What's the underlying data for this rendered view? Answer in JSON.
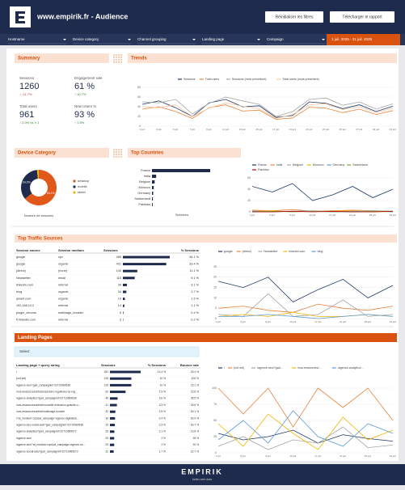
{
  "header": {
    "title": "www.empirik.fr - Audience",
    "buttons": [
      "Réinitialiser les filtres",
      "Télécharger le rapport"
    ]
  },
  "filters": {
    "items": [
      "Hostname",
      "Device category",
      "Channel grouping",
      "Landing page",
      "Campaign"
    ],
    "date": "1 juil. 2025 - 31 juil. 2025"
  },
  "summary": {
    "title": "Summary",
    "metrics": [
      {
        "label": "Sessions",
        "value": "1260",
        "delta": "↓ -11.7%",
        "delta_color": "#d32f2f"
      },
      {
        "label": "Engagement rate",
        "value": "61 %",
        "delta": "↑ 10.7%",
        "delta_color": "#2e7d32"
      },
      {
        "label": "Total users",
        "value": "961",
        "delta": "↓ 2.0% vs Y-1",
        "delta_color": "#2e7d32"
      },
      {
        "label": "New Users %",
        "value": "93 %",
        "delta": "↑ 1.5%",
        "delta_color": "#2e7d32"
      }
    ]
  },
  "trends": {
    "title": "Trends",
    "chart_data": {
      "type": "line",
      "x": [
        "1 juil.",
        "3 juil.",
        "5 juil.",
        "7 juil.",
        "9 juil.",
        "11 juil.",
        "13 juil.",
        "15 juil.",
        "17 juil.",
        "19 juil.",
        "21 juil.",
        "23 juil.",
        "25 juil.",
        "27 juil.",
        "29 juil.",
        "31 juil."
      ],
      "ylim": [
        0,
        80
      ],
      "yticks": [
        0,
        20,
        40,
        60,
        80
      ],
      "grid": true,
      "series": [
        {
          "name": "Sessions",
          "color": "#1f3864",
          "values": [
            45,
            52,
            38,
            20,
            48,
            55,
            40,
            42,
            18,
            22,
            50,
            47,
            36,
            44,
            30,
            41
          ]
        },
        {
          "name": "Total users",
          "color": "#e8833a",
          "values": [
            35,
            40,
            30,
            16,
            38,
            44,
            31,
            33,
            14,
            17,
            39,
            37,
            28,
            35,
            24,
            32
          ]
        },
        {
          "name": "Sessions (mois précédent)",
          "color": "#a6a6a6",
          "values": [
            50,
            48,
            55,
            25,
            47,
            60,
            52,
            45,
            20,
            30,
            55,
            58,
            43,
            50,
            35,
            46
          ]
        },
        {
          "name": "Total users (mois précédent)",
          "color": "#f4c7a1",
          "values": [
            40,
            38,
            44,
            20,
            37,
            48,
            41,
            36,
            16,
            24,
            44,
            46,
            34,
            40,
            28,
            37
          ]
        }
      ]
    }
  },
  "device": {
    "title": "Device Category",
    "chart_data": {
      "type": "pie",
      "x_label": "Nombre de sessions",
      "categories": [
        "desktop",
        "mobile",
        "tablet"
      ],
      "values": [
        64.1,
        34.3,
        1.6
      ],
      "value_labels": [
        "64.1%",
        "34.3%",
        null
      ],
      "colors": [
        "#e0591a",
        "#1f2b4d",
        "#f2b705"
      ]
    }
  },
  "countries": {
    "title": "Top Countries",
    "bars": {
      "type": "bar",
      "categories": [
        "France",
        "India",
        "Belgium",
        "Morocco",
        "Germany",
        "Switzerland",
        "Pakistan"
      ],
      "values": [
        980,
        70,
        45,
        30,
        20,
        15,
        12
      ],
      "color": "#1f2b4d",
      "x_label": "Sessions"
    },
    "chart_data": {
      "type": "line",
      "x": [
        "1 juil.",
        "5 juil.",
        "9 juil.",
        "13 juil.",
        "17 juil.",
        "21 juil.",
        "25 juil.",
        "29 juil."
      ],
      "ylim": [
        0,
        60
      ],
      "yticks": [
        0,
        20,
        40,
        60
      ],
      "grid": true,
      "series": [
        {
          "name": "France",
          "color": "#1f3864",
          "values": [
            45,
            35,
            50,
            20,
            30,
            45,
            25,
            40
          ]
        },
        {
          "name": "India",
          "color": "#e8833a",
          "values": [
            3,
            2,
            4,
            1,
            2,
            3,
            2,
            1
          ]
        },
        {
          "name": "Belgium",
          "color": "#a6a6a6",
          "values": [
            2,
            1,
            1,
            2,
            1,
            0,
            2,
            1
          ]
        },
        {
          "name": "Morocco",
          "color": "#f2b705",
          "values": [
            1,
            2,
            0,
            1,
            1,
            2,
            0,
            1
          ]
        },
        {
          "name": "Germany",
          "color": "#5b9bd5",
          "values": [
            1,
            0,
            1,
            1,
            0,
            1,
            1,
            0
          ]
        },
        {
          "name": "Switzerland",
          "color": "#70ad47",
          "values": [
            0,
            1,
            0,
            1,
            0,
            0,
            1,
            1
          ]
        },
        {
          "name": "Pakistan",
          "color": "#c00000",
          "values": [
            0,
            0,
            1,
            0,
            1,
            0,
            0,
            1
          ]
        }
      ]
    }
  },
  "traffic": {
    "title": "Top Traffic Sources",
    "columns": [
      "Session source",
      "Session medium",
      "Sessions",
      "% Sessions"
    ],
    "bar_color": "#1f2b4d",
    "rows": [
      [
        "google",
        "cpc",
        455,
        "36.1 %"
      ],
      [
        "google",
        "organic",
        421,
        "33.4 %"
      ],
      [
        "(direct)",
        "(none)",
        140,
        "11.1 %"
      ],
      [
        "Newsletter",
        "email",
        115,
        "9.1 %"
      ],
      [
        "linkedin.com",
        "referral",
        39,
        "3.1 %"
      ],
      [
        "bing",
        "organic",
        34,
        "2.7 %"
      ],
      [
        "qwant.com",
        "organic",
        19,
        "1.5 %"
      ],
      [
        "192.168.10.2",
        "referral",
        14,
        "1.1 %"
      ],
      [
        "plugin_chrome",
        "mailinage_booster",
        5,
        "0.4 %"
      ],
      [
        "fr.linkedin.com",
        "referral",
        3,
        "0.2 %"
      ]
    ],
    "chart_data": {
      "type": "line",
      "x": [
        "1 juil.",
        "5 juil.",
        "9 juil.",
        "13 juil.",
        "17 juil.",
        "21 juil.",
        "25 juil.",
        "29 juil."
      ],
      "ylim": [
        0,
        25
      ],
      "yticks": [
        0,
        5,
        10,
        15,
        20,
        25
      ],
      "grid": true,
      "series": [
        {
          "name": "google",
          "color": "#1f3864",
          "values": [
            18,
            15,
            20,
            8,
            14,
            19,
            10,
            16
          ]
        },
        {
          "name": "(direct)",
          "color": "#e8833a",
          "values": [
            5,
            6,
            4,
            3,
            7,
            5,
            4,
            6
          ]
        },
        {
          "name": "Newsletter",
          "color": "#a6a6a6",
          "values": [
            2,
            1,
            12,
            1,
            2,
            9,
            1,
            2
          ]
        },
        {
          "name": "linkedin.com",
          "color": "#f2b705",
          "values": [
            1,
            2,
            1,
            3,
            1,
            1,
            2,
            1
          ]
        },
        {
          "name": "bing",
          "color": "#5b9bd5",
          "values": [
            1,
            1,
            2,
            1,
            0,
            1,
            2,
            1
          ]
        }
      ]
    }
  },
  "landing": {
    "title": "Landing Pages",
    "select": "Select",
    "columns": [
      "Landing page + query string",
      "Sessions",
      "% Sessions",
      "Bounce rate"
    ],
    "bar_color": "#1f2b4d",
    "rows": [
      [
        "/",
        181,
        "14.4 %",
        "25.4 %"
      ],
      [
        "(not set)",
        126,
        "10 %",
        "100 %"
      ],
      [
        "/agence-seo/?gad_campaignid=22710969536",
        126,
        "10 %",
        "15.1 %"
      ],
      [
        "/nos-ressources/article/sessions-regulieres-ou-reg...",
        92,
        "7.3 %",
        "22.8 %"
      ],
      [
        "/agence-analytics/?gad_campaignid=22710969536",
        45,
        "3.6 %",
        "35.5 %"
      ],
      [
        "/nos-ressources/article/nouvelle-extension-gratuite-o...",
        41,
        "3.3 %",
        "26.8 %"
      ],
      [
        "/nos-ressources/article/mailinage-booster",
        32,
        "2.5 %",
        "53.1 %"
      ],
      [
        "/?at_medium=cpc&at_campaign=agence-digital&at...",
        30,
        "2.4 %",
        "30.9 %"
      ],
      [
        "/agence-seo-social-ads/?gad_campaignid=22710969536",
        29,
        "2.3 %",
        "53.7 %"
      ],
      [
        "/agence-analytics/?gad_campaignid=22710969572",
        26,
        "2.1 %",
        "13.8 %"
      ],
      [
        "/agence-seo/",
        25,
        "2 %",
        "28 %"
      ],
      [
        "/agence-seo/?at_medium=cpc&at_campaign=agence-se...",
        25,
        "2 %",
        "20 %"
      ],
      [
        "/agence-social-ads/?gad_campaignid=22710969572",
        22,
        "1.7 %",
        "22.7 %"
      ]
    ],
    "chart_data": {
      "type": "line",
      "x": [
        "1 juil.",
        "5 juil.",
        "9 juil.",
        "13 juil.",
        "17 juil.",
        "21 juil.",
        "25 juil.",
        "29 juil."
      ],
      "ylim": [
        0,
        100
      ],
      "yticks": [
        0,
        25,
        50,
        75,
        100
      ],
      "grid": true,
      "series": [
        {
          "name": "/",
          "color": "#1f3864",
          "values": [
            30,
            20,
            25,
            35,
            15,
            28,
            22,
            18
          ]
        },
        {
          "name": "(not set)",
          "color": "#e8833a",
          "values": [
            100,
            60,
            100,
            40,
            100,
            70,
            100,
            50
          ]
        },
        {
          "name": "/agence-seo/?gad...",
          "color": "#a6a6a6",
          "values": [
            10,
            25,
            5,
            20,
            15,
            40,
            8,
            12
          ]
        },
        {
          "name": "/nos-ressources/...",
          "color": "#f2b705",
          "values": [
            45,
            10,
            60,
            30,
            5,
            55,
            20,
            35
          ]
        },
        {
          "name": "/agence-analytics/...",
          "color": "#5b9bd5",
          "values": [
            20,
            50,
            15,
            65,
            25,
            10,
            45,
            30
          ]
        }
      ]
    }
  },
  "footer": {
    "brand": "EMPIRIK",
    "tagline": "better web data"
  }
}
